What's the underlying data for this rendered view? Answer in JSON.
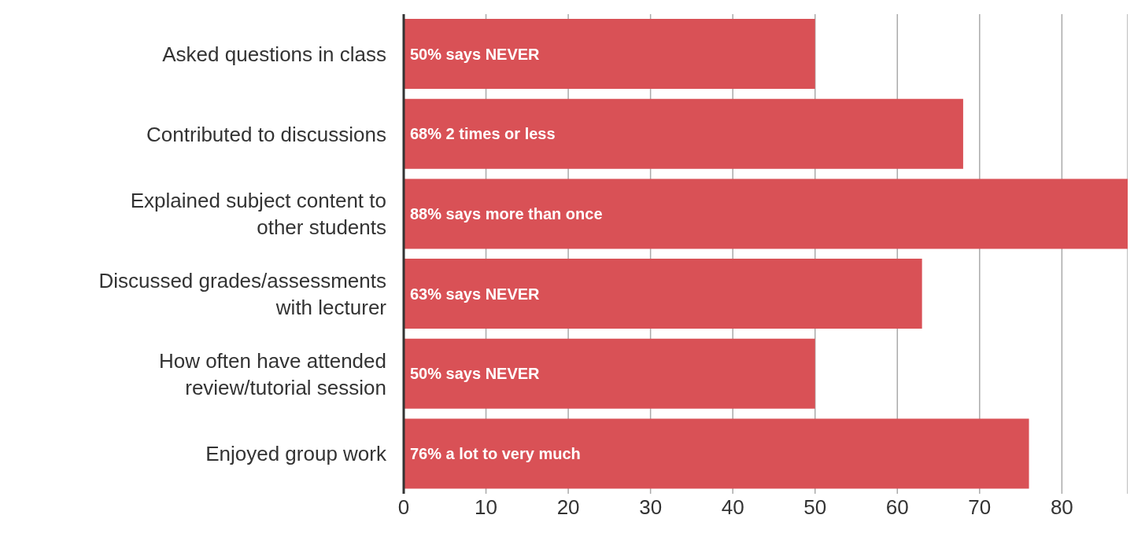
{
  "chart_data": {
    "type": "bar",
    "orientation": "horizontal",
    "categories": [
      "Asked questions in class",
      "Contributed to discussions",
      "Explained subject content to other students",
      "Discussed grades/assessments with lecturer",
      "How often have attended review/tutorial session",
      "Enjoyed group work"
    ],
    "values": [
      50,
      68,
      88,
      63,
      50,
      76
    ],
    "value_labels": [
      "50% says NEVER",
      "68% 2 times or less",
      "88% says more than once",
      "63% says NEVER",
      "50% says NEVER",
      "76% a lot to very much"
    ],
    "color": "#d95156",
    "xlim": [
      0,
      88
    ],
    "xticks": [
      0,
      10,
      20,
      30,
      40,
      50,
      60,
      70,
      80
    ],
    "grid": "x"
  }
}
